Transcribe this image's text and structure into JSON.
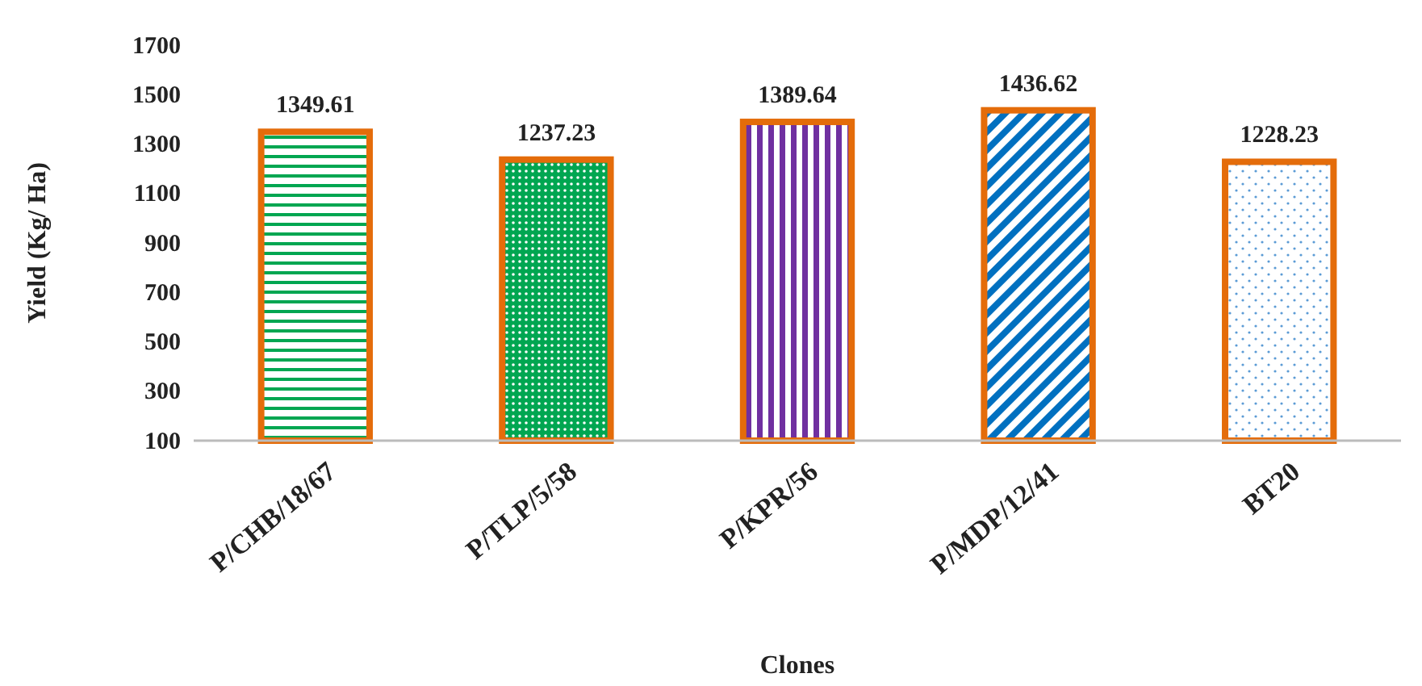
{
  "chart_data": {
    "type": "bar",
    "xlabel": "Clones",
    "ylabel": "Yield (Kg/ Ha)",
    "categories": [
      "P/CHB/18/67",
      "P/TLP/5/58",
      "P/KPR/56",
      "P/MDP/12/41",
      "BT20"
    ],
    "values": [
      1349.61,
      1237.23,
      1389.64,
      1436.62,
      1228.23
    ],
    "colors": [
      "#00a651",
      "#00a651",
      "#7030a0",
      "#0070c0",
      "#5b9bd5"
    ],
    "ylim": [
      100,
      1700
    ],
    "yticks": [
      100,
      300,
      500,
      700,
      900,
      1100,
      1300,
      1500,
      1700
    ],
    "data_labels": true,
    "grid": false
  }
}
